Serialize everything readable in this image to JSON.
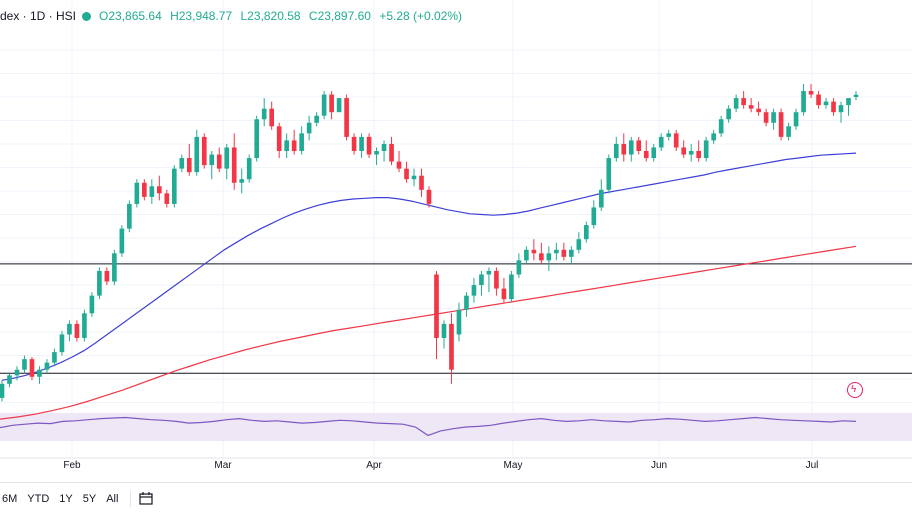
{
  "header": {
    "title": "dex · 1D · HSI",
    "open": "O23,865.64",
    "high": "H23,948.77",
    "low": "L23,820.58",
    "close": "C23,897.60",
    "change": "+5.28 (+0.02%)"
  },
  "bottombar": {
    "ranges": [
      "6M",
      "YTD",
      "1Y",
      "5Y",
      "All"
    ],
    "calendar_icon": "calendar-range-icon"
  },
  "colors": {
    "up": "#22ab94",
    "down": "#f23645",
    "ma_short": "#3f3fd8",
    "ma_long": "#f23645",
    "rsi": "#7e57c2",
    "rsi_band": "#ede7f6",
    "hline": "#131722"
  },
  "chart_data": {
    "type": "candlestick",
    "x_labels": [
      "Feb",
      "Mar",
      "Apr",
      "May",
      "Jun",
      "Jul"
    ],
    "y_range_approx": [
      19500,
      24900
    ],
    "horizontal_lines": [
      21500,
      19950
    ],
    "candles_ohlc": [
      [
        19600,
        19850,
        19550,
        19800
      ],
      [
        19800,
        19950,
        19750,
        19920
      ],
      [
        19920,
        20050,
        19850,
        20000
      ],
      [
        20000,
        20200,
        19950,
        20150
      ],
      [
        20150,
        20180,
        19850,
        19900
      ],
      [
        19900,
        20050,
        19800,
        20000
      ],
      [
        20000,
        20150,
        19950,
        20100
      ],
      [
        20100,
        20300,
        20050,
        20250
      ],
      [
        20250,
        20550,
        20200,
        20500
      ],
      [
        20500,
        20700,
        20400,
        20650
      ],
      [
        20650,
        20700,
        20400,
        20450
      ],
      [
        20450,
        20850,
        20400,
        20800
      ],
      [
        20800,
        21100,
        20750,
        21050
      ],
      [
        21050,
        21450,
        21000,
        21400
      ],
      [
        21400,
        21450,
        21200,
        21250
      ],
      [
        21250,
        21700,
        21200,
        21650
      ],
      [
        21650,
        22050,
        21600,
        22000
      ],
      [
        22000,
        22400,
        21950,
        22350
      ],
      [
        22350,
        22700,
        22300,
        22650
      ],
      [
        22650,
        22700,
        22400,
        22450
      ],
      [
        22450,
        22700,
        22350,
        22600
      ],
      [
        22600,
        22750,
        22400,
        22500
      ],
      [
        22500,
        22550,
        22300,
        22350
      ],
      [
        22350,
        22900,
        22300,
        22850
      ],
      [
        22850,
        23050,
        22800,
        23000
      ],
      [
        23000,
        23200,
        22750,
        22800
      ],
      [
        22800,
        23400,
        22750,
        23300
      ],
      [
        23300,
        23350,
        22850,
        22900
      ],
      [
        22900,
        23100,
        22700,
        23050
      ],
      [
        23050,
        23150,
        22800,
        22850
      ],
      [
        22850,
        23200,
        22700,
        23150
      ],
      [
        23150,
        23350,
        22550,
        22650
      ],
      [
        22650,
        22850,
        22500,
        22700
      ],
      [
        22700,
        23050,
        22650,
        23000
      ],
      [
        23000,
        23600,
        22950,
        23550
      ],
      [
        23550,
        23850,
        23450,
        23700
      ],
      [
        23700,
        23800,
        23400,
        23450
      ],
      [
        23450,
        23500,
        23000,
        23100
      ],
      [
        23100,
        23350,
        23000,
        23250
      ],
      [
        23250,
        23400,
        23050,
        23100
      ],
      [
        23100,
        23450,
        23050,
        23350
      ],
      [
        23350,
        23600,
        23250,
        23500
      ],
      [
        23500,
        23650,
        23450,
        23600
      ],
      [
        23600,
        23950,
        23550,
        23900
      ],
      [
        23900,
        23950,
        23550,
        23650
      ],
      [
        23650,
        23700,
        23800,
        23850
      ],
      [
        23850,
        23900,
        23250,
        23300
      ],
      [
        23300,
        23350,
        23050,
        23100
      ],
      [
        23100,
        23350,
        23000,
        23300
      ],
      [
        23300,
        23350,
        23000,
        23050
      ],
      [
        23050,
        23150,
        22900,
        23100
      ],
      [
        23100,
        23250,
        22950,
        23200
      ],
      [
        23200,
        23300,
        22900,
        22950
      ],
      [
        22950,
        23100,
        22800,
        22850
      ],
      [
        22850,
        22950,
        22650,
        22700
      ],
      [
        22700,
        22850,
        22600,
        22750
      ],
      [
        22750,
        22850,
        22450,
        22550
      ],
      [
        22550,
        22600,
        22300,
        22350
      ],
      [
        21350,
        21400,
        20150,
        20450
      ],
      [
        20450,
        20700,
        20300,
        20650
      ],
      [
        20650,
        20800,
        19800,
        20000
      ],
      [
        20500,
        20950,
        20400,
        20850
      ],
      [
        20850,
        21100,
        20750,
        21050
      ],
      [
        21050,
        21300,
        20950,
        21200
      ],
      [
        21200,
        21400,
        21050,
        21350
      ],
      [
        21350,
        21450,
        21100,
        21400
      ],
      [
        21400,
        21450,
        21050,
        21150
      ],
      [
        21150,
        21300,
        20950,
        21000
      ],
      [
        21000,
        21400,
        20950,
        21350
      ],
      [
        21350,
        21650,
        21300,
        21550
      ],
      [
        21550,
        21750,
        21500,
        21700
      ],
      [
        21700,
        21850,
        21550,
        21650
      ],
      [
        21650,
        21800,
        21500,
        21550
      ],
      [
        21550,
        21750,
        21400,
        21650
      ],
      [
        21650,
        21800,
        21550,
        21700
      ],
      [
        21700,
        21800,
        21550,
        21600
      ],
      [
        21600,
        21750,
        21500,
        21700
      ],
      [
        21700,
        21950,
        21650,
        21850
      ],
      [
        21850,
        22100,
        21800,
        22050
      ],
      [
        22050,
        22400,
        22000,
        22300
      ],
      [
        22300,
        22700,
        22250,
        22550
      ],
      [
        22550,
        23050,
        22500,
        23000
      ],
      [
        23000,
        23300,
        22950,
        23200
      ],
      [
        23200,
        23350,
        22950,
        23050
      ],
      [
        23050,
        23300,
        22950,
        23250
      ],
      [
        23250,
        23300,
        23050,
        23100
      ],
      [
        23100,
        23250,
        22950,
        23000
      ],
      [
        23000,
        23200,
        22950,
        23150
      ],
      [
        23150,
        23350,
        23100,
        23300
      ],
      [
        23300,
        23400,
        23250,
        23350
      ],
      [
        23350,
        23400,
        23100,
        23150
      ],
      [
        23150,
        23250,
        23000,
        23050
      ],
      [
        23050,
        23200,
        22950,
        23100
      ],
      [
        23100,
        23250,
        22950,
        23000
      ],
      [
        23000,
        23300,
        22950,
        23250
      ],
      [
        23250,
        23400,
        23200,
        23350
      ],
      [
        23350,
        23600,
        23300,
        23550
      ],
      [
        23550,
        23750,
        23500,
        23700
      ],
      [
        23700,
        23900,
        23650,
        23850
      ],
      [
        23850,
        23950,
        23700,
        23750
      ],
      [
        23750,
        23850,
        23650,
        23700
      ],
      [
        23700,
        23800,
        23600,
        23650
      ],
      [
        23650,
        23700,
        23450,
        23500
      ],
      [
        23500,
        23700,
        23400,
        23650
      ],
      [
        23650,
        23700,
        23250,
        23300
      ],
      [
        23300,
        23500,
        23250,
        23450
      ],
      [
        23450,
        23700,
        23400,
        23650
      ],
      [
        23650,
        24050,
        23600,
        23950
      ],
      [
        23950,
        24050,
        23850,
        23900
      ],
      [
        23900,
        23950,
        23700,
        23750
      ],
      [
        23750,
        23850,
        23700,
        23800
      ],
      [
        23800,
        23850,
        23600,
        23650
      ],
      [
        23650,
        23800,
        23500,
        23750
      ],
      [
        23750,
        23800,
        23600,
        23850
      ],
      [
        23865.64,
        23948.77,
        23820.58,
        23897.6
      ]
    ],
    "series": [
      {
        "type": "line",
        "values": [
          19850,
          19880,
          19920,
          19970,
          20030,
          20100,
          20180,
          20270,
          20380,
          20500,
          20620,
          20740,
          20860,
          20980,
          21100,
          21220,
          21340,
          21460,
          21580,
          21700,
          21800,
          21900,
          21990,
          22070,
          22150,
          22220,
          22280,
          22330,
          22370,
          22400,
          22420,
          22430,
          22440,
          22440,
          22420,
          22390,
          22350,
          22310,
          22270,
          22240,
          22210,
          22200,
          22190,
          22200,
          22220,
          22250,
          22290,
          22330,
          22370,
          22410,
          22450,
          22490,
          22520,
          22550,
          22580,
          22610,
          22640,
          22670,
          22700,
          22730,
          22760,
          22800,
          22830,
          22860,
          22890,
          22920,
          22950,
          22980,
          23000,
          23020,
          23040,
          23050,
          23060,
          23070
        ]
      },
      {
        "type": "line",
        "values": [
          19300,
          19330,
          19370,
          19420,
          19480,
          19550,
          19630,
          19710,
          19800,
          19890,
          19980,
          20060,
          20140,
          20210,
          20280,
          20340,
          20400,
          20450,
          20500,
          20550,
          20590,
          20630,
          20670,
          20710,
          20750,
          20790,
          20830,
          20870,
          20910,
          20950,
          20990,
          21030,
          21070,
          21110,
          21150,
          21190,
          21230,
          21270,
          21310,
          21350,
          21390,
          21430,
          21470,
          21510,
          21550,
          21590,
          21630,
          21670,
          21710,
          21750
        ]
      }
    ],
    "indicator": {
      "type": "oscillator-line",
      "values": [
        44,
        48,
        50,
        52,
        51,
        55,
        56,
        58,
        60,
        61,
        62,
        60,
        58,
        57,
        55,
        52,
        53,
        55,
        58,
        60,
        57,
        55,
        56,
        54,
        52,
        53,
        55,
        57,
        56,
        54,
        52,
        51,
        50,
        45,
        30,
        38,
        42,
        45,
        46,
        48,
        52,
        55,
        58,
        60,
        57,
        55,
        56,
        58,
        56,
        55,
        54,
        57,
        58,
        60,
        59,
        57,
        55,
        56,
        58,
        60,
        62,
        60,
        58,
        57,
        56,
        55,
        54,
        56,
        55
      ]
    },
    "xlabel": "",
    "ylabel": ""
  }
}
